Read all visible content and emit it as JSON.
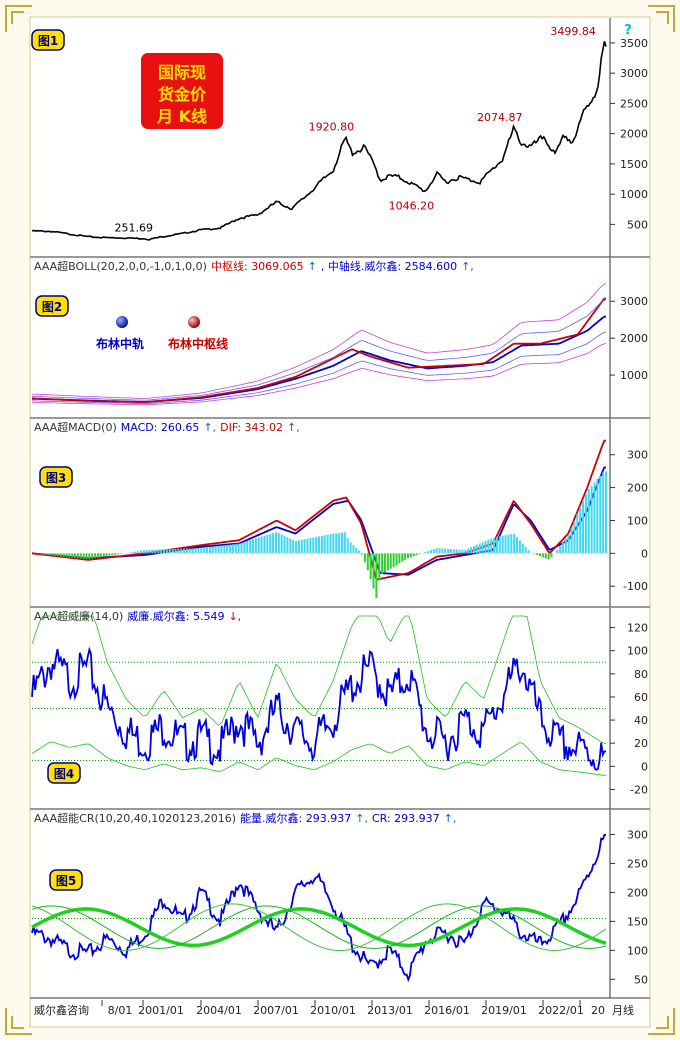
{
  "watermark": "威尔鑫咨询",
  "help_glyph": "?",
  "logo_text": [
    "国际现",
    "货金价",
    "月 K线"
  ],
  "panels": [
    {
      "id": "p1",
      "tag": "图1",
      "legend_items": []
    },
    {
      "id": "p2",
      "tag": "图2",
      "header": [
        {
          "text": "AAA超BOLL(20,2,0,0,-1,0,1,0,0)",
          "color": "#333333"
        },
        {
          "text": "中枢线: 3069.065",
          "color": "#cc0000"
        },
        {
          "text": "↑",
          "color": "#1060c0"
        },
        {
          "text": ", 中轴线.威尔鑫: 2584.600",
          "color": "#0000cc"
        },
        {
          "text": "↑,",
          "color": "#1060c0"
        }
      ],
      "legend_items": [
        {
          "text": "布林中轨",
          "color": "#0000cc"
        },
        {
          "text": "布林中枢线",
          "color": "#cc0000"
        }
      ]
    },
    {
      "id": "p3",
      "tag": "图3",
      "header": [
        {
          "text": "AAA超MACD(0)",
          "color": "#333333"
        },
        {
          "text": "MACD: 260.65",
          "color": "#0000cc"
        },
        {
          "text": "↑,",
          "color": "#1060c0"
        },
        {
          "text": "DIF: 343.02",
          "color": "#cc0000"
        },
        {
          "text": "↑,",
          "color": "#1060c0"
        }
      ],
      "legend_items": []
    },
    {
      "id": "p4",
      "tag": "图4",
      "header": [
        {
          "text": "AAA超威廉(14,0)",
          "color": "#333333"
        },
        {
          "text": "威廉.威尔鑫: 5.549",
          "color": "#0000cc"
        },
        {
          "text": "↓,",
          "color": "#cc0000"
        }
      ],
      "legend_items": []
    },
    {
      "id": "p5",
      "tag": "图5",
      "header": [
        {
          "text": "AAA超能CR(10,20,40,1020123,2016)",
          "color": "#333333"
        },
        {
          "text": "能量.威尔鑫: 293.937",
          "color": "#0000cc"
        },
        {
          "text": "↑,",
          "color": "#1060c0"
        },
        {
          "text": "CR: 293.937",
          "color": "#0000cc"
        },
        {
          "text": "↑,",
          "color": "#1060c0"
        }
      ],
      "legend_items": []
    }
  ],
  "price_annotations": [
    {
      "text": "251.69",
      "x": 2001.15,
      "y": 252
    },
    {
      "text": "1920.80",
      "x": 2011.65,
      "y": 1921
    },
    {
      "text": "1046.20",
      "x": 2015.9,
      "y": 1046
    },
    {
      "text": "2074.87",
      "x": 2020.6,
      "y": 2075
    },
    {
      "text": "3499.84",
      "x": 2024.5,
      "y": 3500
    }
  ],
  "x_axis": {
    "ticks": [
      "8/01",
      "2001/01",
      "2004/01",
      "2007/01",
      "2010/01",
      "2013/01",
      "2016/01",
      "2019/01",
      "2022/01",
      "20"
    ],
    "suffix": "月线"
  },
  "chart_data": [
    {
      "panel": "p1",
      "type": "line",
      "title": "国际现货金价月 K线",
      "series": [
        {
          "points": [
            [
              1995.0,
              390
            ],
            [
              1996.0,
              385
            ],
            [
              1997.0,
              340
            ],
            [
              1998.0,
              295
            ],
            [
              1999.0,
              280
            ],
            [
              2000.0,
              275
            ],
            [
              2001.0,
              265
            ],
            [
              2001.2,
              252
            ],
            [
              2002.0,
              300
            ],
            [
              2003.0,
              350
            ],
            [
              2004.0,
              410
            ],
            [
              2005.0,
              440
            ],
            [
              2006.0,
              600
            ],
            [
              2007.0,
              660
            ],
            [
              2008.0,
              870
            ],
            [
              2008.8,
              760
            ],
            [
              2009.5,
              950
            ],
            [
              2010.0,
              1100
            ],
            [
              2010.5,
              1250
            ],
            [
              2011.0,
              1400
            ],
            [
              2011.65,
              1921
            ],
            [
              2012.0,
              1680
            ],
            [
              2012.7,
              1770
            ],
            [
              2013.3,
              1400
            ],
            [
              2013.5,
              1230
            ],
            [
              2014.0,
              1300
            ],
            [
              2014.5,
              1280
            ],
            [
              2015.0,
              1200
            ],
            [
              2015.9,
              1046
            ],
            [
              2016.5,
              1330
            ],
            [
              2017.0,
              1200
            ],
            [
              2017.7,
              1280
            ],
            [
              2018.5,
              1220
            ],
            [
              2018.8,
              1200
            ],
            [
              2019.5,
              1420
            ],
            [
              2020.0,
              1580
            ],
            [
              2020.6,
              2075
            ],
            [
              2021.0,
              1850
            ],
            [
              2021.5,
              1780
            ],
            [
              2022.2,
              1950
            ],
            [
              2022.8,
              1640
            ],
            [
              2023.3,
              1980
            ],
            [
              2023.7,
              1850
            ],
            [
              2024.0,
              2050
            ],
            [
              2024.3,
              2350
            ],
            [
              2024.6,
              2500
            ],
            [
              2024.9,
              2650
            ],
            [
              2025.1,
              2850
            ],
            [
              2025.3,
              3300
            ],
            [
              2025.4,
              3500
            ],
            [
              2025.5,
              3400
            ]
          ]
        }
      ],
      "ylim": [
        60,
        3680
      ],
      "y_ticks": [
        500,
        1000,
        1500,
        2000,
        2500,
        3000,
        3500
      ]
    },
    {
      "panel": "p2",
      "type": "line",
      "series": [
        {
          "name": "布林中轨",
          "points": [
            [
              1995.0,
              360
            ],
            [
              1998.0,
              310
            ],
            [
              2001.0,
              270
            ],
            [
              2004.0,
              380
            ],
            [
              2007.0,
              620
            ],
            [
              2009.0,
              900
            ],
            [
              2011.0,
              1250
            ],
            [
              2012.5,
              1650
            ],
            [
              2014.0,
              1400
            ],
            [
              2016.0,
              1180
            ],
            [
              2018.0,
              1250
            ],
            [
              2019.5,
              1350
            ],
            [
              2021.0,
              1800
            ],
            [
              2023.0,
              1850
            ],
            [
              2024.5,
              2200
            ],
            [
              2025.4,
              2585
            ]
          ]
        },
        {
          "name": "布林中枢线",
          "points": [
            [
              1995.0,
              370
            ],
            [
              1998.0,
              300
            ],
            [
              2001.0,
              265
            ],
            [
              2004.0,
              400
            ],
            [
              2007.0,
              650
            ],
            [
              2009.0,
              950
            ],
            [
              2011.0,
              1450
            ],
            [
              2012.0,
              1700
            ],
            [
              2013.0,
              1500
            ],
            [
              2015.0,
              1200
            ],
            [
              2017.0,
              1250
            ],
            [
              2019.0,
              1300
            ],
            [
              2020.6,
              1850
            ],
            [
              2022.0,
              1850
            ],
            [
              2024.0,
              2100
            ],
            [
              2025.4,
              3069
            ]
          ]
        }
      ],
      "ylim": [
        0,
        3900
      ],
      "y_ticks": [
        1000,
        2000,
        3000
      ]
    },
    {
      "panel": "p3",
      "type": "line",
      "series": [
        {
          "name": "MACD",
          "points": [
            [
              1995.0,
              0
            ],
            [
              1998.0,
              -15
            ],
            [
              2001.0,
              -5
            ],
            [
              2004.0,
              20
            ],
            [
              2006.0,
              30
            ],
            [
              2008.0,
              80
            ],
            [
              2009.0,
              60
            ],
            [
              2011.0,
              150
            ],
            [
              2011.8,
              160
            ],
            [
              2012.5,
              100
            ],
            [
              2013.5,
              -60
            ],
            [
              2015.0,
              -65
            ],
            [
              2016.5,
              -20
            ],
            [
              2018.0,
              -5
            ],
            [
              2019.5,
              10
            ],
            [
              2020.6,
              150
            ],
            [
              2021.5,
              100
            ],
            [
              2022.5,
              10
            ],
            [
              2023.5,
              40
            ],
            [
              2024.5,
              130
            ],
            [
              2025.4,
              261
            ]
          ]
        },
        {
          "name": "DIF",
          "points": [
            [
              1995.0,
              0
            ],
            [
              1998.0,
              -20
            ],
            [
              2001.0,
              0
            ],
            [
              2004.0,
              25
            ],
            [
              2006.0,
              40
            ],
            [
              2008.0,
              100
            ],
            [
              2009.0,
              70
            ],
            [
              2011.0,
              160
            ],
            [
              2011.7,
              170
            ],
            [
              2012.5,
              90
            ],
            [
              2013.3,
              -80
            ],
            [
              2015.0,
              -60
            ],
            [
              2016.5,
              -10
            ],
            [
              2018.0,
              0
            ],
            [
              2019.5,
              30
            ],
            [
              2020.6,
              160
            ],
            [
              2021.5,
              90
            ],
            [
              2022.5,
              0
            ],
            [
              2023.5,
              60
            ],
            [
              2024.5,
              200
            ],
            [
              2025.4,
              343
            ]
          ]
        }
      ],
      "ylim": [
        -145,
        360
      ],
      "y_ticks": [
        -100,
        0,
        100,
        200,
        300
      ]
    },
    {
      "panel": "p4",
      "type": "line",
      "series": [
        {
          "name": "威廉",
          "points": [
            [
              1995.0,
              60
            ],
            [
              1996.0,
              90
            ],
            [
              1997.0,
              75
            ],
            [
              1998.0,
              85
            ],
            [
              1999.0,
              50
            ],
            [
              2000.0,
              30
            ],
            [
              2001.0,
              20
            ],
            [
              2002.0,
              35
            ],
            [
              2003.0,
              20
            ],
            [
              2004.0,
              25
            ],
            [
              2005.0,
              15
            ],
            [
              2006.0,
              40
            ],
            [
              2007.0,
              20
            ],
            [
              2008.0,
              50
            ],
            [
              2009.0,
              30
            ],
            [
              2010.0,
              20
            ],
            [
              2011.0,
              40
            ],
            [
              2012.0,
              70
            ],
            [
              2013.0,
              85
            ],
            [
              2014.0,
              60
            ],
            [
              2015.0,
              80
            ],
            [
              2016.0,
              30
            ],
            [
              2017.0,
              20
            ],
            [
              2018.0,
              40
            ],
            [
              2019.0,
              30
            ],
            [
              2020.0,
              60
            ],
            [
              2021.0,
              90
            ],
            [
              2022.0,
              40
            ],
            [
              2023.0,
              20
            ],
            [
              2024.0,
              15
            ],
            [
              2025.4,
              6
            ]
          ]
        }
      ],
      "ylim": [
        -30,
        130
      ],
      "y_ticks": [
        -20,
        0,
        20,
        40,
        60,
        80,
        100,
        120
      ],
      "reference_lines": [
        5,
        50,
        90
      ]
    },
    {
      "panel": "p5",
      "type": "line",
      "series": [
        {
          "name": "能量",
          "points": [
            [
              1995.0,
              130
            ],
            [
              1996.0,
              120
            ],
            [
              1997.0,
              100
            ],
            [
              1998.0,
              95
            ],
            [
              1999.0,
              120
            ],
            [
              2000.0,
              100
            ],
            [
              2001.0,
              130
            ],
            [
              2002.0,
              190
            ],
            [
              2003.0,
              150
            ],
            [
              2004.0,
              200
            ],
            [
              2005.0,
              150
            ],
            [
              2006.0,
              220
            ],
            [
              2007.0,
              170
            ],
            [
              2008.0,
              130
            ],
            [
              2009.0,
              200
            ],
            [
              2010.0,
              230
            ],
            [
              2011.0,
              180
            ],
            [
              2012.0,
              110
            ],
            [
              2013.0,
              70
            ],
            [
              2014.0,
              100
            ],
            [
              2015.0,
              60
            ],
            [
              2016.0,
              120
            ],
            [
              2017.0,
              130
            ],
            [
              2018.0,
              110
            ],
            [
              2019.0,
              180
            ],
            [
              2020.0,
              170
            ],
            [
              2021.0,
              130
            ],
            [
              2022.0,
              110
            ],
            [
              2023.0,
              140
            ],
            [
              2024.0,
              190
            ],
            [
              2025.4,
              294
            ]
          ]
        }
      ],
      "ylim": [
        35,
        325
      ],
      "y_ticks": [
        50,
        100,
        150,
        200,
        250,
        300
      ],
      "reference_lines": [
        155
      ]
    }
  ]
}
